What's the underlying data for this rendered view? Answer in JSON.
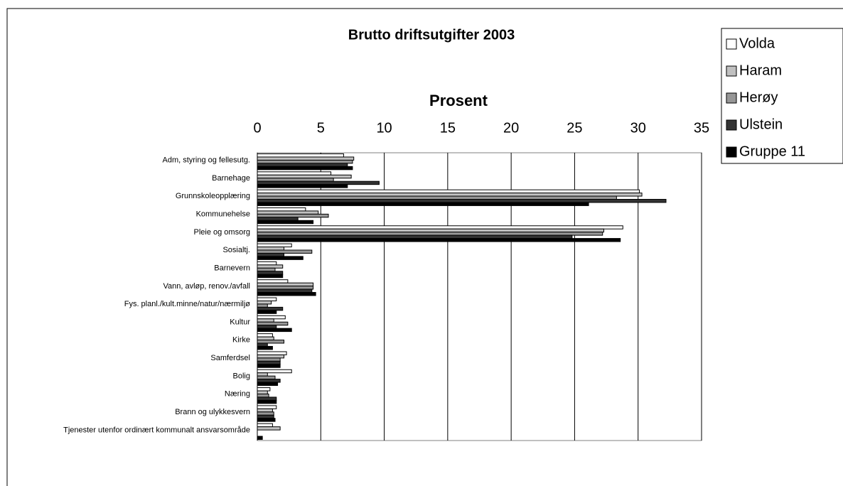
{
  "chart_data": {
    "type": "hbar",
    "title": "Brutto driftsutgifter 2003",
    "xlabel": "Prosent",
    "categories": [
      "Adm, styring og fellesutg.",
      "Barnehage",
      "Grunnskoleopplæring",
      "Kommunehelse",
      "Pleie og omsorg",
      "Sosialtj.",
      "Barnevern",
      "Vann, avløp, renov./avfall",
      "Fys. planl./kult.minne/natur/nærmiljø",
      "Kultur",
      "Kirke",
      "Samferdsel",
      "Bolig",
      "Næring",
      "Brann og ulykkesvern",
      "Tjenester utenfor ordinært kommunalt ansvarsområde"
    ],
    "series": [
      {
        "name": "Volda",
        "color": "#ffffff",
        "values": [
          6.8,
          5.8,
          30.1,
          3.8,
          28.8,
          2.7,
          1.5,
          2.4,
          1.5,
          2.2,
          1.2,
          2.3,
          2.7,
          1.0,
          1.5,
          1.2
        ]
      },
      {
        "name": "Haram",
        "color": "#c0c0c0",
        "values": [
          7.6,
          7.4,
          30.3,
          4.8,
          27.3,
          2.1,
          2.0,
          4.4,
          1.1,
          1.3,
          1.3,
          2.1,
          0.8,
          0.8,
          1.2,
          1.8
        ]
      },
      {
        "name": "Herøy",
        "color": "#969696",
        "values": [
          7.5,
          6.0,
          28.3,
          5.6,
          27.2,
          4.3,
          1.4,
          4.4,
          0.8,
          2.4,
          2.1,
          1.8,
          1.4,
          0.9,
          1.3,
          0.0
        ]
      },
      {
        "name": "Ulstein",
        "color": "#333333",
        "values": [
          7.1,
          9.6,
          32.2,
          3.2,
          24.8,
          2.1,
          2.0,
          4.3,
          2.0,
          1.5,
          0.8,
          1.8,
          1.8,
          1.5,
          1.3,
          0.0
        ]
      },
      {
        "name": "Gruppe 11",
        "color": "#000000",
        "values": [
          7.5,
          7.1,
          26.1,
          4.4,
          28.6,
          3.6,
          2.0,
          4.6,
          1.5,
          2.7,
          1.2,
          1.8,
          1.6,
          1.5,
          1.4,
          0.4
        ]
      }
    ],
    "xlim": [
      0,
      35
    ],
    "xticks": [
      0,
      5,
      10,
      15,
      20,
      25,
      30,
      35
    ],
    "grid": true,
    "legend": "right"
  }
}
